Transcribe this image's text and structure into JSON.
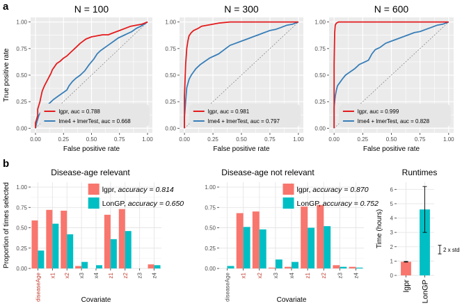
{
  "panel_labels": [
    "a",
    "b"
  ],
  "colors": {
    "red": "#e41a1c",
    "blue": "#377eb8",
    "salmon": "#f8766d",
    "teal": "#00bfc4",
    "panel_bg": "#ebebeb",
    "grid": "#ffffff",
    "legend_bg": "#e6e6e6"
  },
  "chart_data": [
    {
      "type": "line",
      "title": "N = 100",
      "xlabel": "False positive rate",
      "ylabel": "True positive rate",
      "xlim": [
        0,
        1
      ],
      "ylim": [
        0,
        1
      ],
      "x_ticks": [
        "0.00",
        "0.25",
        "0.50",
        "0.75",
        "1.00"
      ],
      "y_ticks": [
        "0.00",
        "0.25",
        "0.50",
        "0.75",
        "1.00"
      ],
      "legend": [
        "lgpr, auc = 0.788",
        "lme4 + lmerTest, auc = 0.668"
      ],
      "series": [
        {
          "name": "lgpr",
          "color": "red",
          "x": [
            0.0,
            0.0,
            0.02,
            0.02,
            0.04,
            0.05,
            0.06,
            0.08,
            0.1,
            0.12,
            0.14,
            0.15,
            0.17,
            0.19,
            0.22,
            0.25,
            0.28,
            0.32,
            0.36,
            0.4,
            0.45,
            0.5,
            0.55,
            0.6,
            0.65,
            0.7,
            0.75,
            0.8,
            0.85,
            0.9,
            0.95,
            1.0
          ],
          "y": [
            0.0,
            0.05,
            0.12,
            0.18,
            0.25,
            0.3,
            0.35,
            0.4,
            0.44,
            0.48,
            0.52,
            0.55,
            0.58,
            0.61,
            0.63,
            0.66,
            0.68,
            0.72,
            0.76,
            0.8,
            0.84,
            0.86,
            0.87,
            0.88,
            0.88,
            0.9,
            0.92,
            0.94,
            0.96,
            0.97,
            0.98,
            1.0
          ]
        },
        {
          "name": "lme4 + lmerTest",
          "color": "blue",
          "x": [
            0.0,
            0.01,
            0.03,
            0.05,
            0.08,
            0.1,
            0.13,
            0.16,
            0.2,
            0.24,
            0.28,
            0.3,
            0.33,
            0.36,
            0.4,
            0.44,
            0.48,
            0.52,
            0.55,
            0.58,
            0.62,
            0.66,
            0.7,
            0.74,
            0.78,
            0.82,
            0.86,
            0.9,
            0.94,
            0.97,
            1.0
          ],
          "y": [
            0.0,
            0.05,
            0.12,
            0.16,
            0.18,
            0.21,
            0.24,
            0.27,
            0.3,
            0.33,
            0.36,
            0.4,
            0.44,
            0.47,
            0.5,
            0.54,
            0.6,
            0.65,
            0.7,
            0.73,
            0.76,
            0.79,
            0.82,
            0.85,
            0.87,
            0.89,
            0.91,
            0.94,
            0.96,
            0.98,
            1.0
          ]
        }
      ]
    },
    {
      "type": "line",
      "title": "N = 300",
      "xlabel": "False positive rate",
      "ylabel": "",
      "xlim": [
        0,
        1
      ],
      "ylim": [
        0,
        1
      ],
      "x_ticks": [
        "0.00",
        "0.25",
        "0.50",
        "0.75",
        "1.00"
      ],
      "y_ticks": [
        "0.00",
        "0.25",
        "0.50",
        "0.75",
        "1.00"
      ],
      "legend": [
        "lgpr, auc = 0.981",
        "lme4 + lmerTest, auc = 0.797"
      ],
      "series": [
        {
          "name": "lgpr",
          "color": "red",
          "x": [
            0.0,
            0.0,
            0.01,
            0.02,
            0.03,
            0.04,
            0.06,
            0.08,
            0.1,
            0.12,
            0.15,
            0.2,
            0.25,
            0.3,
            0.4,
            0.5,
            0.6,
            0.7,
            0.8,
            0.9,
            1.0
          ],
          "y": [
            0.0,
            0.3,
            0.6,
            0.75,
            0.82,
            0.87,
            0.9,
            0.92,
            0.93,
            0.94,
            0.96,
            0.97,
            0.98,
            0.99,
            1.0,
            1.0,
            1.0,
            1.0,
            1.0,
            1.0,
            1.0
          ]
        },
        {
          "name": "lme4 + lmerTest",
          "color": "blue",
          "x": [
            0.0,
            0.0,
            0.01,
            0.02,
            0.04,
            0.06,
            0.08,
            0.1,
            0.14,
            0.18,
            0.22,
            0.26,
            0.3,
            0.35,
            0.4,
            0.45,
            0.5,
            0.55,
            0.6,
            0.65,
            0.7,
            0.75,
            0.8,
            0.85,
            0.9,
            0.95,
            1.0
          ],
          "y": [
            0.0,
            0.1,
            0.25,
            0.38,
            0.46,
            0.5,
            0.53,
            0.56,
            0.6,
            0.63,
            0.66,
            0.68,
            0.7,
            0.74,
            0.78,
            0.8,
            0.82,
            0.84,
            0.86,
            0.88,
            0.9,
            0.92,
            0.93,
            0.95,
            0.97,
            0.98,
            1.0
          ]
        }
      ]
    },
    {
      "type": "line",
      "title": "N = 600",
      "xlabel": "False positive rate",
      "ylabel": "",
      "xlim": [
        0,
        1
      ],
      "ylim": [
        0,
        1
      ],
      "x_ticks": [
        "0.00",
        "0.25",
        "0.50",
        "0.75",
        "1.00"
      ],
      "y_ticks": [
        "0.00",
        "0.25",
        "0.50",
        "0.75",
        "1.00"
      ],
      "legend": [
        "lgpr, auc = 0.999",
        "lme4 + lmerTest, auc = 0.828"
      ],
      "series": [
        {
          "name": "lgpr",
          "color": "red",
          "x": [
            0.0,
            0.0,
            0.005,
            0.01,
            0.02,
            0.04,
            0.1,
            0.3,
            0.5,
            0.7,
            0.9,
            1.0
          ],
          "y": [
            0.0,
            0.6,
            0.9,
            0.97,
            0.99,
            1.0,
            1.0,
            1.0,
            1.0,
            1.0,
            1.0,
            1.0
          ]
        },
        {
          "name": "lme4 + lmerTest",
          "color": "blue",
          "x": [
            0.0,
            0.0,
            0.01,
            0.02,
            0.03,
            0.05,
            0.07,
            0.1,
            0.14,
            0.18,
            0.22,
            0.26,
            0.3,
            0.33,
            0.36,
            0.4,
            0.45,
            0.5,
            0.55,
            0.6,
            0.65,
            0.7,
            0.75,
            0.8,
            0.85,
            0.9,
            0.95,
            1.0
          ],
          "y": [
            0.0,
            0.2,
            0.3,
            0.36,
            0.4,
            0.43,
            0.46,
            0.5,
            0.53,
            0.56,
            0.6,
            0.62,
            0.64,
            0.7,
            0.74,
            0.76,
            0.8,
            0.82,
            0.84,
            0.86,
            0.88,
            0.9,
            0.91,
            0.93,
            0.95,
            0.97,
            0.98,
            1.0
          ]
        }
      ]
    },
    {
      "type": "bar",
      "title": "Disease-age relevant",
      "xlabel": "Covariate",
      "ylabel": "Proportion of times selected",
      "ylim": [
        0,
        1.0
      ],
      "y_ticks": [
        "0.00",
        "0.25",
        "0.50",
        "0.75",
        "1.00"
      ],
      "categories": [
        "diseaseAge",
        "x1",
        "x2",
        "x3",
        "x4",
        "z1",
        "z2",
        "z3",
        "z4"
      ],
      "relevant": [
        true,
        true,
        true,
        false,
        false,
        true,
        true,
        false,
        false
      ],
      "legend": [
        {
          "name": "lgpr, ",
          "accuracy": "accuracy = 0.814"
        },
        {
          "name": "LonGP, ",
          "accuracy": "accuracy = 0.650"
        }
      ],
      "series": [
        {
          "name": "lgpr",
          "color": "salmon",
          "values": [
            0.59,
            0.72,
            0.71,
            0.03,
            0.0,
            0.66,
            0.73,
            0.0,
            0.05
          ]
        },
        {
          "name": "LonGP",
          "color": "teal",
          "values": [
            0.22,
            0.55,
            0.42,
            0.08,
            0.04,
            0.36,
            0.46,
            0.0,
            0.04
          ]
        }
      ]
    },
    {
      "type": "bar",
      "title": "Disease-age not relevant",
      "xlabel": "Covariate",
      "ylabel": "",
      "ylim": [
        0,
        1.0
      ],
      "y_ticks": [
        "0.00",
        "0.25",
        "0.50",
        "0.75",
        "1.00"
      ],
      "categories": [
        "diseaseAge",
        "x1",
        "x2",
        "x3",
        "x4",
        "z1",
        "z2",
        "z3",
        "z4"
      ],
      "relevant": [
        false,
        true,
        true,
        false,
        false,
        true,
        true,
        false,
        false
      ],
      "legend": [
        {
          "name": "lgpr, ",
          "accuracy": "accuracy = 0.870"
        },
        {
          "name": "LonGP, ",
          "accuracy": "accuracy = 0.752"
        }
      ],
      "series": [
        {
          "name": "lgpr",
          "color": "salmon",
          "values": [
            0.0,
            0.68,
            0.7,
            0.01,
            0.02,
            0.76,
            0.78,
            0.04,
            0.02
          ]
        },
        {
          "name": "LonGP",
          "color": "teal",
          "values": [
            0.03,
            0.51,
            0.48,
            0.11,
            0.08,
            0.5,
            0.52,
            0.02,
            0.01
          ]
        }
      ]
    },
    {
      "type": "bar",
      "title": "Runtimes",
      "xlabel": "",
      "ylabel": "Time (hours)",
      "ylim": [
        0,
        6.5
      ],
      "y_ticks": [
        "0",
        "1",
        "2",
        "3",
        "4",
        "5",
        "6"
      ],
      "categories": [
        "lgpr",
        "LonGP"
      ],
      "values": [
        0.95,
        4.6
      ],
      "errors": [
        0.02,
        1.6
      ],
      "annotation": "2 x std",
      "annotation_span": 0.6
    }
  ]
}
